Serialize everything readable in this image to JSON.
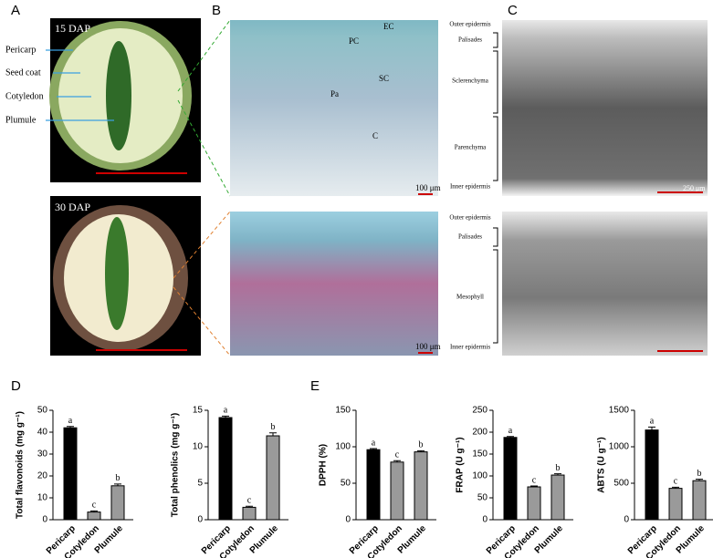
{
  "panel_labels": [
    "A",
    "B",
    "C",
    "D",
    "E"
  ],
  "panel_a": {
    "top_label": "15 DAP",
    "bottom_label": "30 DAP",
    "parts": [
      "Pericarp",
      "Seed coat",
      "Cotyledon",
      "Plumule"
    ]
  },
  "panel_b": {
    "markers": [
      "EC",
      "PC",
      "SC",
      "Pa",
      "C"
    ],
    "scale_top": "100 μm",
    "scale_bottom": "100 μm",
    "top_layers": [
      "Outer epidermis",
      "Palisades",
      "Sclerenchyma",
      "Parenchyma",
      "Inner epidermis"
    ],
    "bottom_layers": [
      "Outer epidermis",
      "Palisades",
      "Mesophyll",
      "Inner epidermis"
    ]
  },
  "panel_c": {
    "scale_top": "250 μm"
  },
  "chart_data": [
    {
      "type": "bar",
      "ylabel": "Total flavonoids (mg g⁻¹)",
      "categories": [
        "Pericarp",
        "Cotyledon",
        "Plumule"
      ],
      "values": [
        42,
        3.5,
        15.5
      ],
      "errors": [
        0.6,
        0.5,
        0.8
      ],
      "letters": [
        "a",
        "c",
        "b"
      ],
      "colors": [
        "#000000",
        "#9a9a9a",
        "#9a9a9a"
      ],
      "ylim": [
        0,
        50
      ],
      "yticks": [
        0,
        10,
        20,
        30,
        40,
        50
      ]
    },
    {
      "type": "bar",
      "ylabel": "Total phenolics (mg g⁻¹)",
      "categories": [
        "Pericarp",
        "Cotyledon",
        "Plumule"
      ],
      "values": [
        14,
        1.7,
        11.5
      ],
      "errors": [
        0.2,
        0.15,
        0.4
      ],
      "letters": [
        "a",
        "c",
        "b"
      ],
      "colors": [
        "#000000",
        "#9a9a9a",
        "#9a9a9a"
      ],
      "ylim": [
        0,
        15
      ],
      "yticks": [
        0,
        5,
        10,
        15
      ]
    },
    {
      "type": "bar",
      "ylabel": "DPPH (%)",
      "categories": [
        "Pericarp",
        "Cotyledon",
        "Plumule"
      ],
      "values": [
        96,
        79,
        93
      ],
      "errors": [
        1.5,
        2,
        1.5
      ],
      "letters": [
        "a",
        "c",
        "b"
      ],
      "colors": [
        "#000000",
        "#9a9a9a",
        "#9a9a9a"
      ],
      "ylim": [
        0,
        150
      ],
      "yticks": [
        0,
        50,
        100,
        150
      ]
    },
    {
      "type": "bar",
      "ylabel": "FRAP (U g⁻¹)",
      "categories": [
        "Pericarp",
        "Cotyledon",
        "Plumule"
      ],
      "values": [
        188,
        75,
        102
      ],
      "errors": [
        2,
        2,
        3
      ],
      "letters": [
        "a",
        "c",
        "b"
      ],
      "colors": [
        "#000000",
        "#9a9a9a",
        "#9a9a9a"
      ],
      "ylim": [
        0,
        250
      ],
      "yticks": [
        0,
        50,
        100,
        150,
        200,
        250
      ]
    },
    {
      "type": "bar",
      "ylabel": "ABTS (U g⁻¹)",
      "categories": [
        "Pericarp",
        "Cotyledon",
        "Plumule"
      ],
      "values": [
        1230,
        430,
        535
      ],
      "errors": [
        40,
        15,
        20
      ],
      "letters": [
        "a",
        "c",
        "b"
      ],
      "colors": [
        "#000000",
        "#9a9a9a",
        "#9a9a9a"
      ],
      "ylim": [
        0,
        1500
      ],
      "yticks": [
        0,
        500,
        1000,
        1500
      ]
    }
  ]
}
